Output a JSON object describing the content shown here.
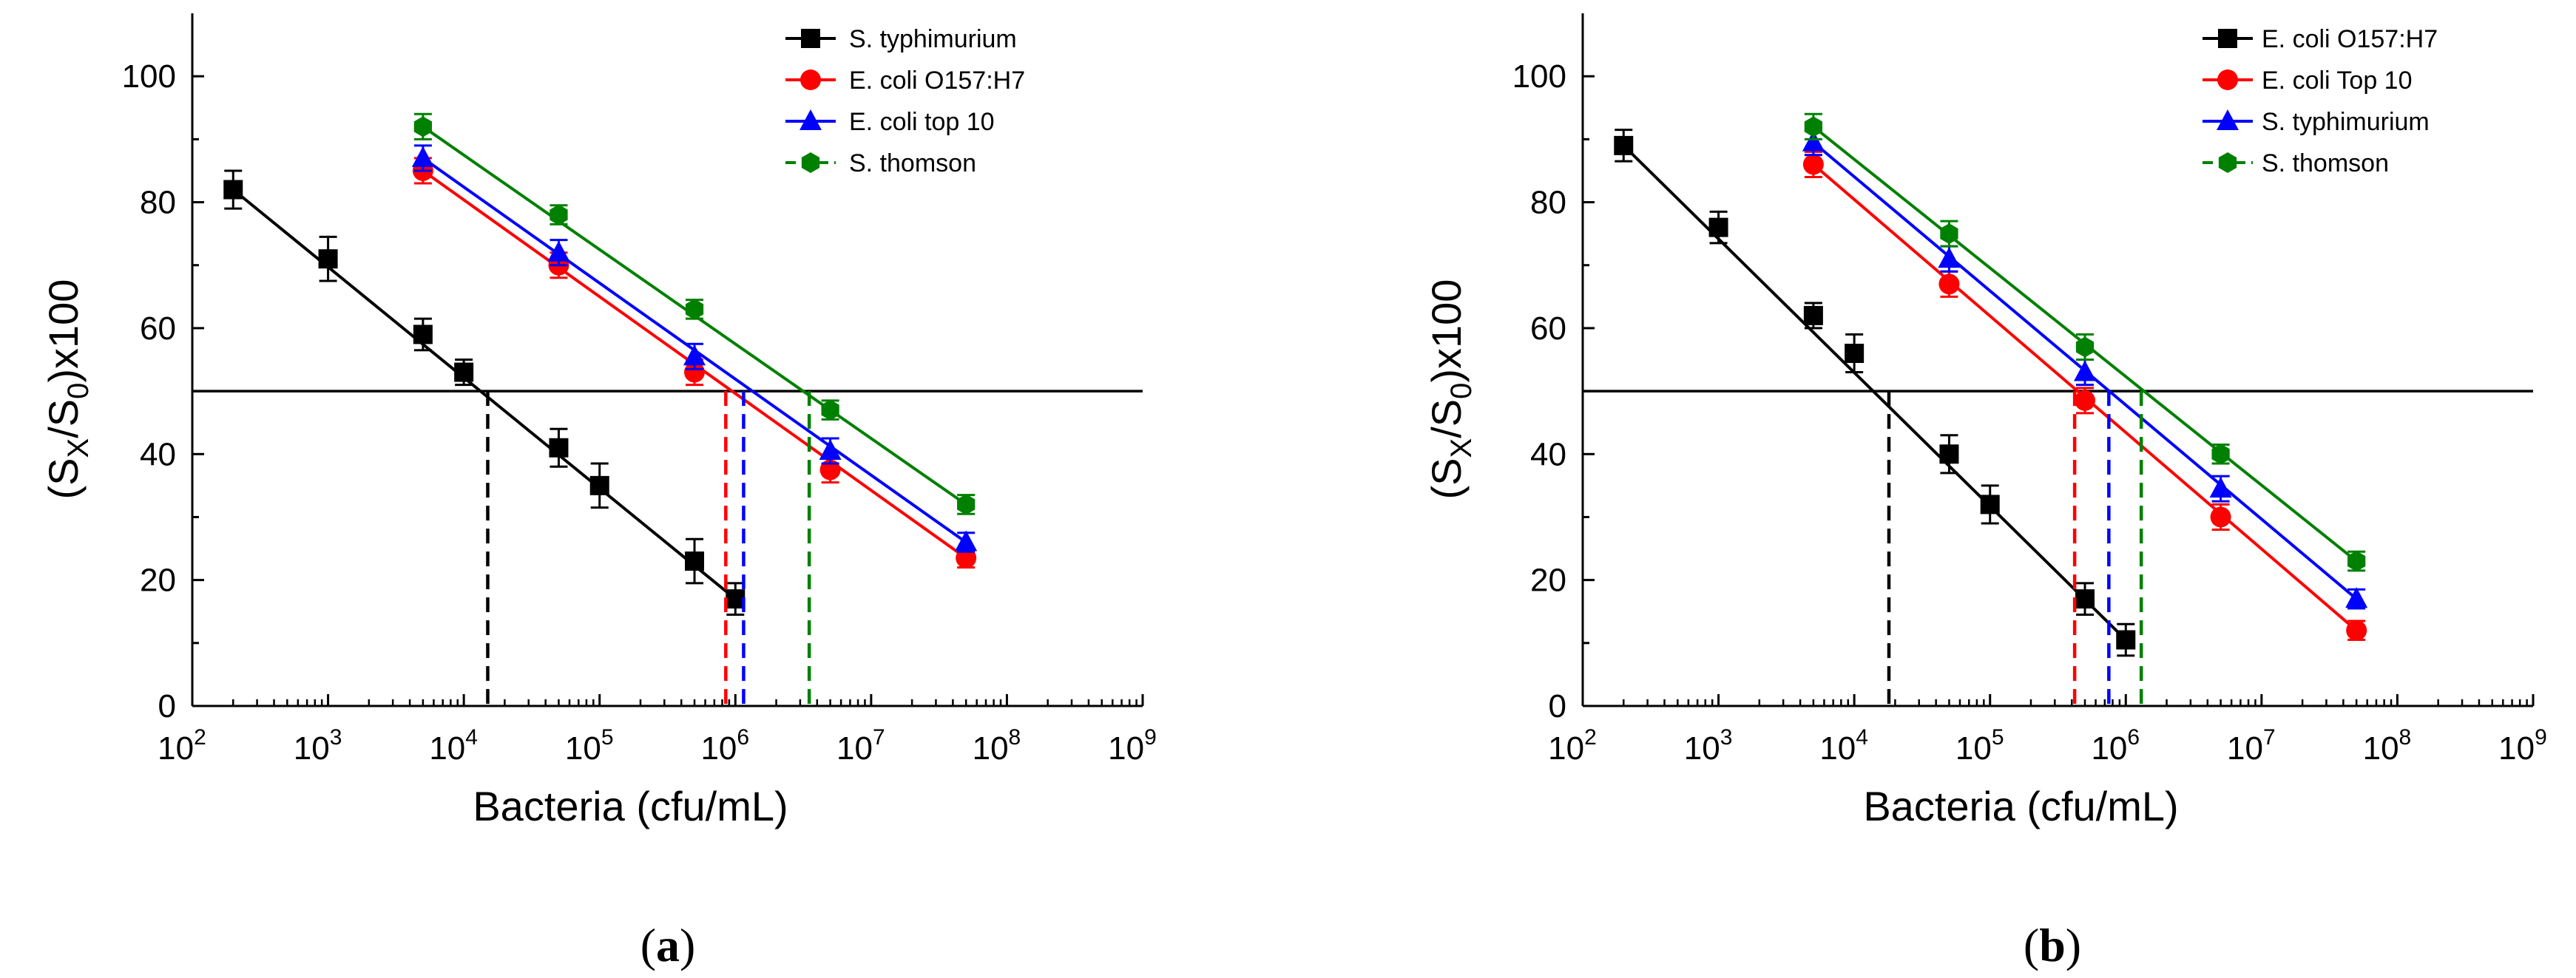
{
  "charts": [
    {
      "id": "a",
      "caption_open": "(",
      "caption_letter": "a",
      "caption_close": ")",
      "chart_data": {
        "type": "line",
        "xscale": "log",
        "xlabel": "Bacteria (cfu/mL)",
        "ylabel_parts": [
          "(S",
          "X",
          "/S",
          "0",
          ")x100"
        ],
        "xlim": [
          100,
          1000000000
        ],
        "ylim": [
          0,
          110
        ],
        "xtick_exponents": [
          "2",
          "3",
          "4",
          "5",
          "6",
          "7",
          "8",
          "9"
        ],
        "ytick_values": [
          0,
          20,
          40,
          60,
          80,
          100
        ],
        "ytick_labels": [
          "0",
          "20",
          "40",
          "60",
          "80",
          "100"
        ],
        "threshold": 50,
        "legend_position": "top-right",
        "series": [
          {
            "name": "S. typhimurium",
            "color": "#000000",
            "marker": "square",
            "x": [
              200,
              1000,
              5000,
              10000,
              50000,
              100000,
              500000,
              1000000
            ],
            "y": [
              82,
              71,
              59,
              53,
              41,
              35,
              23,
              17
            ],
            "err": [
              3,
              3.5,
              2.5,
              2,
              3,
              3.5,
              3.5,
              2.5
            ],
            "fit": [
              [
                200,
                82
              ],
              [
                1000000,
                17
              ]
            ],
            "lod": 15000
          },
          {
            "name": "E. coli O157:H7",
            "color": "#ff0000",
            "marker": "circle",
            "x": [
              5000,
              50000,
              500000,
              5000000,
              50000000
            ],
            "y": [
              85,
              70,
              53,
              37.5,
              23.5
            ],
            "err": [
              2,
              2,
              2,
              2,
              1.5
            ],
            "fit": [
              [
                5000,
                85
              ],
              [
                50000000,
                23.5
              ]
            ],
            "lod": 850000
          },
          {
            "name": "E. coli top 10",
            "color": "#0000ff",
            "marker": "triangle",
            "x": [
              5000,
              50000,
              500000,
              5000000,
              50000000
            ],
            "y": [
              87,
              72,
              55.5,
              40.5,
              26
            ],
            "err": [
              2,
              2,
              2,
              2,
              1.5
            ],
            "fit": [
              [
                5000,
                87
              ],
              [
                50000000,
                26
              ]
            ],
            "lod": 1150000
          },
          {
            "name": "S. thomson",
            "color": "#008000",
            "marker": "hexagon",
            "x": [
              5000,
              50000,
              500000,
              5000000,
              50000000
            ],
            "y": [
              92,
              78,
              63,
              47,
              32
            ],
            "err": [
              2,
              1.5,
              1.5,
              1.5,
              1.5
            ],
            "fit": [
              [
                5000,
                92
              ],
              [
                50000000,
                32
              ]
            ],
            "lod": 3500000
          }
        ]
      }
    },
    {
      "id": "b",
      "caption_open": "(",
      "caption_letter": "b",
      "caption_close": ")",
      "chart_data": {
        "type": "line",
        "xscale": "log",
        "xlabel": "Bacteria (cfu/mL)",
        "ylabel_parts": [
          "(S",
          "X",
          "/S",
          "0",
          ")x100"
        ],
        "xlim": [
          100,
          1000000000
        ],
        "ylim": [
          0,
          110
        ],
        "xtick_exponents": [
          "2",
          "3",
          "4",
          "5",
          "6",
          "7",
          "8",
          "9"
        ],
        "ytick_values": [
          0,
          20,
          40,
          60,
          80,
          100
        ],
        "ytick_labels": [
          "0",
          "20",
          "40",
          "60",
          "80",
          "100"
        ],
        "threshold": 50,
        "legend_position": "top-right",
        "series": [
          {
            "name": "E. coli O157:H7",
            "color": "#000000",
            "marker": "square",
            "x": [
              200,
              1000,
              5000,
              10000,
              50000,
              100000,
              500000,
              1000000
            ],
            "y": [
              89,
              76,
              62,
              56,
              40,
              32,
              17,
              10.5
            ],
            "err": [
              2.5,
              2.5,
              2,
              3,
              3,
              3,
              2.5,
              2.5
            ],
            "fit": [
              [
                200,
                89
              ],
              [
                1000000,
                10.5
              ]
            ],
            "lod": 18000
          },
          {
            "name": "E. coli Top 10",
            "color": "#ff0000",
            "marker": "circle",
            "x": [
              5000,
              50000,
              500000,
              5000000,
              50000000
            ],
            "y": [
              86,
              67,
              48.5,
              30,
              12
            ],
            "err": [
              2,
              2,
              2,
              2,
              1.5
            ],
            "fit": [
              [
                5000,
                86
              ],
              [
                50000000,
                12
              ]
            ],
            "lod": 420000
          },
          {
            "name": "S. typhimurium",
            "color": "#0000ff",
            "marker": "triangle",
            "x": [
              5000,
              50000,
              500000,
              5000000,
              50000000
            ],
            "y": [
              89.5,
              71,
              53,
              34.5,
              17
            ],
            "err": [
              2,
              2,
              2,
              2,
              1.5
            ],
            "fit": [
              [
                5000,
                89.5
              ],
              [
                50000000,
                17
              ]
            ],
            "lod": 750000
          },
          {
            "name": "S. thomson",
            "color": "#008000",
            "marker": "hexagon",
            "x": [
              5000,
              50000,
              500000,
              5000000,
              50000000
            ],
            "y": [
              92,
              75,
              57,
              40,
              23
            ],
            "err": [
              2,
              2,
              2,
              1.5,
              1.5
            ],
            "fit": [
              [
                5000,
                92
              ],
              [
                50000000,
                23
              ]
            ],
            "lod": 1300000
          }
        ]
      }
    }
  ]
}
